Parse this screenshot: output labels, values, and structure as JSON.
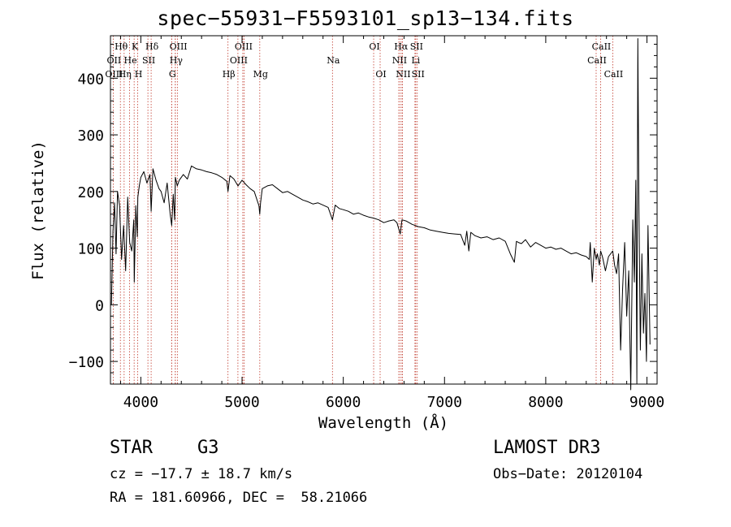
{
  "chart_data": {
    "type": "line",
    "title": "spec−55931−F5593101_sp13−134.fits",
    "xlabel": "Wavelength (Å)",
    "ylabel": "Flux (relative)",
    "xlim": [
      3700,
      9100
    ],
    "ylim": [
      -140,
      475
    ],
    "x_ticks": [
      4000,
      5000,
      6000,
      7000,
      8000,
      9000
    ],
    "y_ticks": [
      -100,
      0,
      100,
      200,
      300,
      400
    ],
    "x_tick_labels": [
      "4000",
      "5000",
      "6000",
      "7000",
      "8000",
      "9000"
    ],
    "y_tick_labels": [
      "−100",
      "0",
      "100",
      "200",
      "300",
      "400"
    ],
    "lines": [
      {
        "label": "Hθ",
        "wavelength": 3798,
        "row": 0
      },
      {
        "label": "OII",
        "wavelength": 3727,
        "row": 1
      },
      {
        "label": "OIII",
        "wavelength": 3727,
        "row": 2
      },
      {
        "label": "He",
        "wavelength": 3889,
        "row": 1
      },
      {
        "label": "Hη",
        "wavelength": 3835,
        "row": 2
      },
      {
        "label": "K",
        "wavelength": 3934,
        "row": 0
      },
      {
        "label": "SII",
        "wavelength": 4070,
        "row": 1
      },
      {
        "label": "H",
        "wavelength": 3969,
        "row": 2
      },
      {
        "label": "Hδ",
        "wavelength": 4102,
        "row": 0
      },
      {
        "label": "OIII",
        "wavelength": 4363,
        "row": 0
      },
      {
        "label": "Hγ",
        "wavelength": 4341,
        "row": 1
      },
      {
        "label": "G",
        "wavelength": 4304,
        "row": 2
      },
      {
        "label": "Hβ",
        "wavelength": 4861,
        "row": 2
      },
      {
        "label": "OIII",
        "wavelength": 5007,
        "row": 0
      },
      {
        "label": "OIII",
        "wavelength": 4959,
        "row": 1
      },
      {
        "label": "Mg",
        "wavelength": 5175,
        "row": 2
      },
      {
        "label": "Na",
        "wavelength": 5893,
        "row": 1
      },
      {
        "label": "OI",
        "wavelength": 6300,
        "row": 0
      },
      {
        "label": "OI",
        "wavelength": 6364,
        "row": 2
      },
      {
        "label": "Hα",
        "wavelength": 6563,
        "row": 0
      },
      {
        "label": "SII",
        "wavelength": 6716,
        "row": 0
      },
      {
        "label": "NII",
        "wavelength": 6548,
        "row": 1
      },
      {
        "label": "Li",
        "wavelength": 6708,
        "row": 1
      },
      {
        "label": "NII",
        "wavelength": 6584,
        "row": 2
      },
      {
        "label": "SII",
        "wavelength": 6731,
        "row": 2
      },
      {
        "label": "CaII",
        "wavelength": 8542,
        "row": 0
      },
      {
        "label": "CaII",
        "wavelength": 8498,
        "row": 1
      },
      {
        "label": "CaII",
        "wavelength": 8662,
        "row": 2
      }
    ],
    "extra_line_marks": [
      4305,
      4340,
      5020,
      6580
    ],
    "spectrum": {
      "name": "flux",
      "x": [
        3710,
        3725,
        3740,
        3755,
        3770,
        3790,
        3810,
        3830,
        3850,
        3870,
        3890,
        3910,
        3930,
        3935,
        3950,
        3965,
        3970,
        3985,
        4000,
        4030,
        4060,
        4090,
        4102,
        4120,
        4150,
        4180,
        4200,
        4230,
        4260,
        4290,
        4305,
        4320,
        4335,
        4341,
        4360,
        4380,
        4420,
        4460,
        4500,
        4550,
        4600,
        4650,
        4700,
        4750,
        4800,
        4850,
        4861,
        4880,
        4920,
        4960,
        5000,
        5040,
        5080,
        5120,
        5167,
        5175,
        5183,
        5200,
        5250,
        5300,
        5350,
        5400,
        5450,
        5500,
        5550,
        5600,
        5650,
        5700,
        5750,
        5800,
        5850,
        5893,
        5920,
        5960,
        6000,
        6050,
        6100,
        6150,
        6200,
        6250,
        6300,
        6350,
        6400,
        6450,
        6500,
        6530,
        6563,
        6580,
        6620,
        6680,
        6740,
        6800,
        6860,
        6920,
        6980,
        7040,
        7100,
        7160,
        7200,
        7220,
        7240,
        7260,
        7300,
        7360,
        7420,
        7480,
        7540,
        7600,
        7650,
        7690,
        7710,
        7730,
        7760,
        7800,
        7850,
        7900,
        7950,
        8000,
        8050,
        8100,
        8150,
        8200,
        8250,
        8300,
        8350,
        8400,
        8430,
        8440,
        8460,
        8480,
        8498,
        8510,
        8530,
        8542,
        8560,
        8590,
        8620,
        8662,
        8680,
        8700,
        8720,
        8740,
        8760,
        8780,
        8800,
        8820,
        8840,
        8860,
        8875,
        8890,
        8900,
        8910,
        8920,
        8935,
        8950,
        8965,
        8980,
        8995,
        9010,
        9030
      ],
      "y": [
        0,
        130,
        180,
        90,
        200,
        175,
        80,
        140,
        60,
        190,
        110,
        95,
        150,
        40,
        175,
        120,
        190,
        210,
        225,
        235,
        215,
        230,
        165,
        240,
        220,
        205,
        200,
        180,
        215,
        160,
        140,
        195,
        150,
        225,
        210,
        220,
        230,
        222,
        245,
        240,
        238,
        235,
        233,
        230,
        225,
        218,
        200,
        228,
        222,
        210,
        220,
        212,
        205,
        200,
        175,
        160,
        180,
        205,
        210,
        212,
        205,
        198,
        200,
        195,
        190,
        185,
        182,
        178,
        180,
        176,
        172,
        150,
        176,
        170,
        168,
        165,
        160,
        162,
        158,
        155,
        153,
        150,
        145,
        148,
        150,
        145,
        125,
        150,
        148,
        142,
        138,
        136,
        132,
        130,
        128,
        126,
        125,
        124,
        105,
        130,
        95,
        128,
        122,
        118,
        120,
        115,
        118,
        112,
        90,
        75,
        112,
        110,
        108,
        115,
        102,
        110,
        105,
        100,
        102,
        98,
        100,
        95,
        90,
        92,
        88,
        85,
        80,
        110,
        40,
        100,
        80,
        90,
        70,
        95,
        85,
        60,
        85,
        95,
        70,
        55,
        90,
        -80,
        30,
        110,
        -20,
        60,
        -150,
        150,
        40,
        220,
        -140,
        470,
        180,
        -80,
        90,
        -50,
        20,
        -100,
        140,
        -70
      ]
    },
    "grid": false,
    "legend": "none"
  },
  "footer": {
    "object_class": "STAR",
    "subclass": "G3",
    "survey": "LAMOST DR3",
    "cz": "cz = −17.7 ± 18.7 km/s",
    "obs_date": "Obs−Date: 20120104",
    "coords": "RA = 181.60966, DEC =  58.21066"
  }
}
